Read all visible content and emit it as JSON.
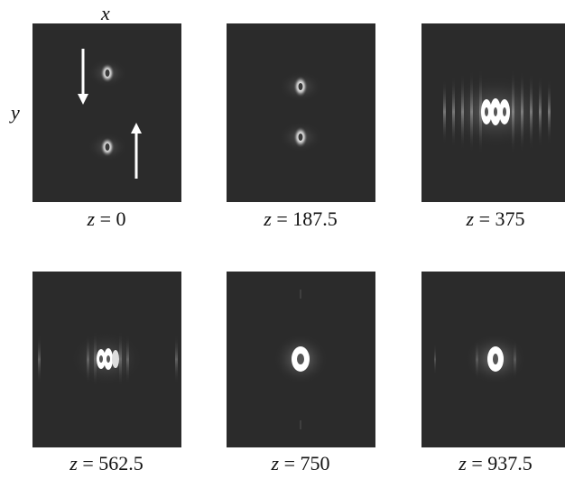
{
  "axes": {
    "x_label": "x",
    "y_label": "y"
  },
  "panels": [
    {
      "variable": "z",
      "value": "0"
    },
    {
      "variable": "z",
      "value": "187.5"
    },
    {
      "variable": "z",
      "value": "375"
    },
    {
      "variable": "z",
      "value": "562.5"
    },
    {
      "variable": "z",
      "value": "750"
    },
    {
      "variable": "z",
      "value": "937.5"
    }
  ],
  "colors": {
    "panel_background": "#2b2b2b",
    "spot": "#ffffff",
    "arrow": "#ffffff",
    "text": "#111111"
  }
}
